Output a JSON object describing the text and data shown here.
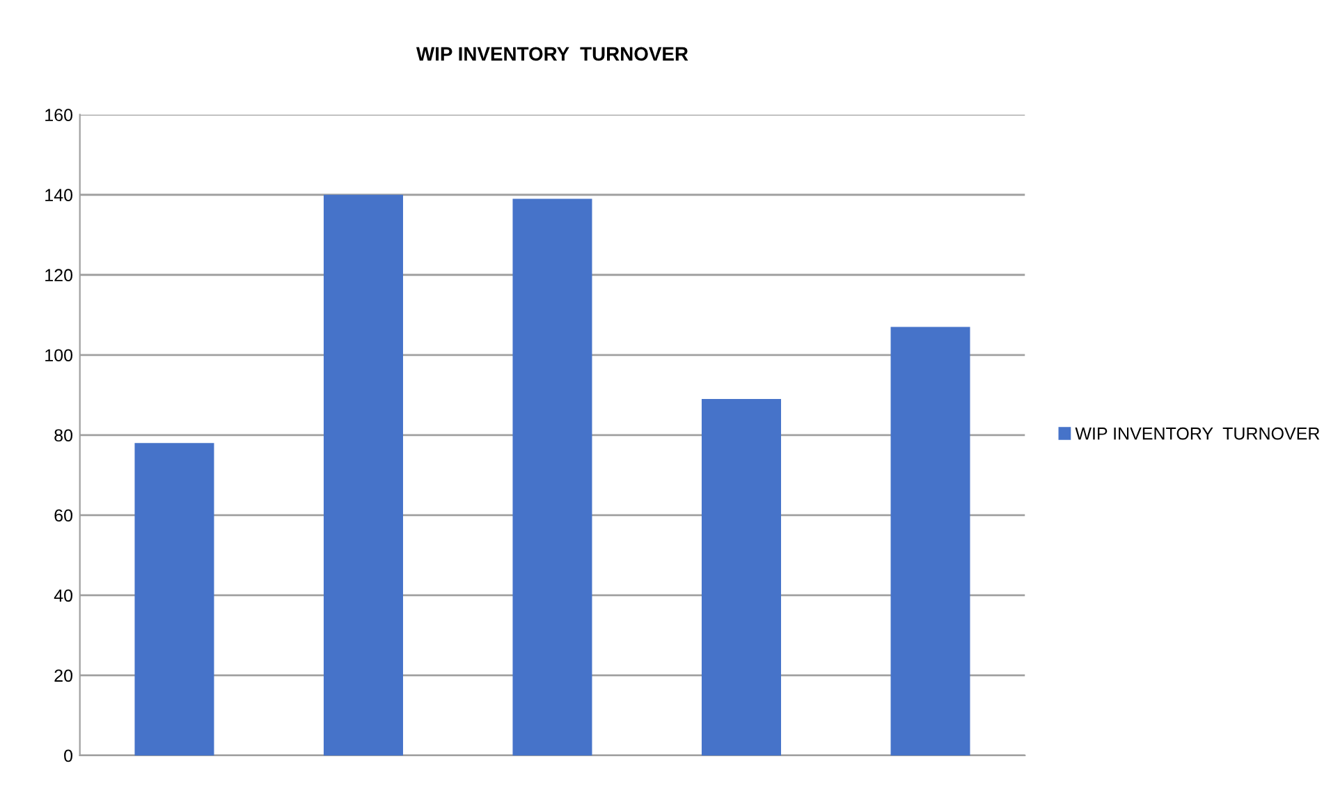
{
  "chart_data": {
    "type": "bar",
    "title": "WIP INVENTORY  TURNOVER",
    "categories": [
      null,
      null,
      null,
      null,
      null
    ],
    "series": [
      {
        "name": "WIP INVENTORY  TURNOVER",
        "color": "#4673c9",
        "values": [
          78,
          140,
          139,
          89,
          107
        ]
      }
    ],
    "ylim": [
      0,
      160
    ],
    "yticks": [
      0,
      20,
      40,
      60,
      80,
      100,
      120,
      140,
      160
    ],
    "grid": "y",
    "legend": "right"
  }
}
